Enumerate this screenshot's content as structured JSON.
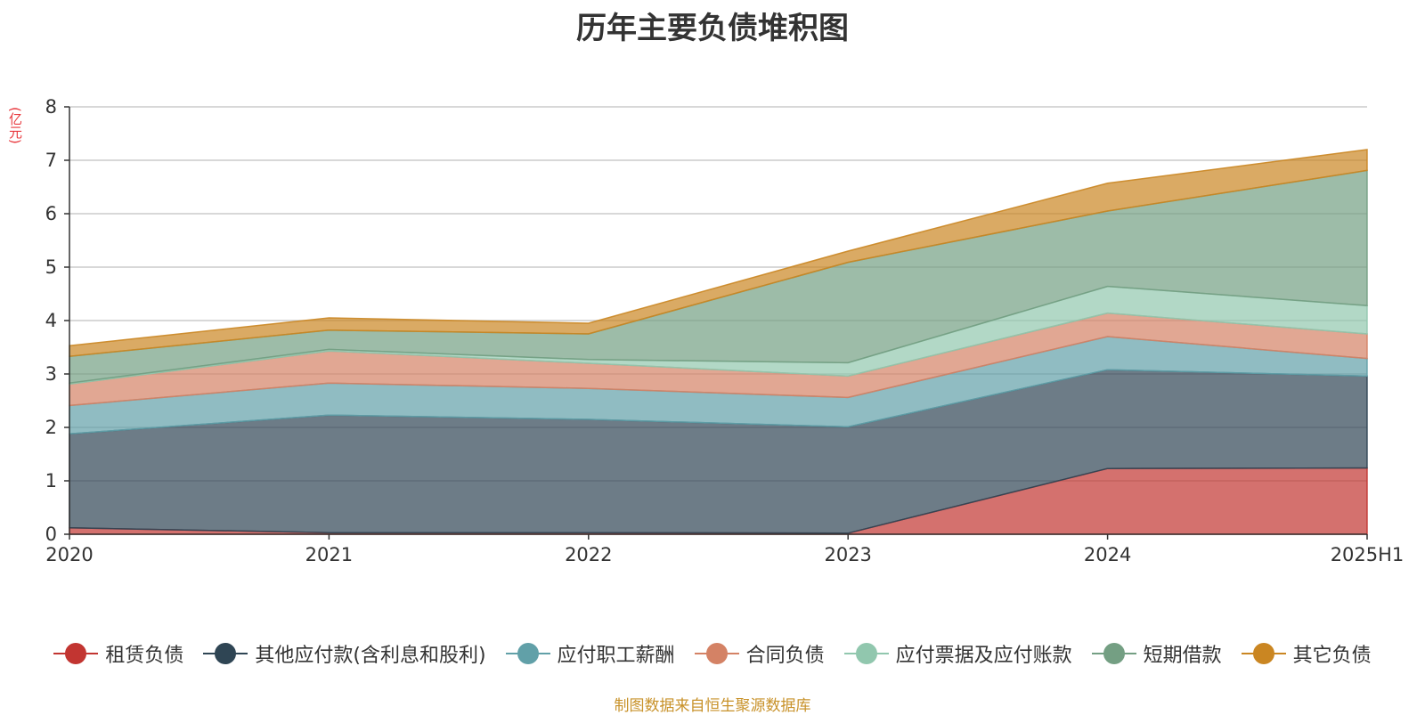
{
  "chart_data": {
    "type": "area",
    "stacked": true,
    "title": "历年主要负债堆积图",
    "ylabel": "(亿元)",
    "categories": [
      "2020",
      "2021",
      "2022",
      "2023",
      "2024",
      "2025H1"
    ],
    "ylim": [
      0,
      8
    ],
    "yticks": [
      0,
      1,
      2,
      3,
      4,
      5,
      6,
      7,
      8
    ],
    "grid": true,
    "legend_position": "bottom",
    "series": [
      {
        "name": "租赁负债",
        "color": "#c23531",
        "values": [
          0.12,
          0.03,
          0.03,
          0.02,
          1.23,
          1.24
        ]
      },
      {
        "name": "其他应付款(含利息和股利)",
        "color": "#2f4554",
        "values": [
          1.76,
          2.2,
          2.12,
          1.99,
          1.85,
          1.72
        ]
      },
      {
        "name": "应付职工薪酬",
        "color": "#61a0a8",
        "values": [
          0.53,
          0.6,
          0.58,
          0.55,
          0.62,
          0.33
        ]
      },
      {
        "name": "合同负债",
        "color": "#d48265",
        "values": [
          0.4,
          0.6,
          0.47,
          0.4,
          0.44,
          0.46
        ]
      },
      {
        "name": "应付票据及应付账款",
        "color": "#91c7ae",
        "values": [
          0.02,
          0.03,
          0.07,
          0.25,
          0.5,
          0.53
        ]
      },
      {
        "name": "短期借款",
        "color": "#749f83",
        "values": [
          0.5,
          0.36,
          0.48,
          1.88,
          1.41,
          2.53
        ]
      },
      {
        "name": "其它负债",
        "color": "#ca8622",
        "values": [
          0.2,
          0.23,
          0.2,
          0.21,
          0.52,
          0.39
        ]
      }
    ]
  },
  "footer": {
    "source": "制图数据来自恒生聚源数据库"
  }
}
